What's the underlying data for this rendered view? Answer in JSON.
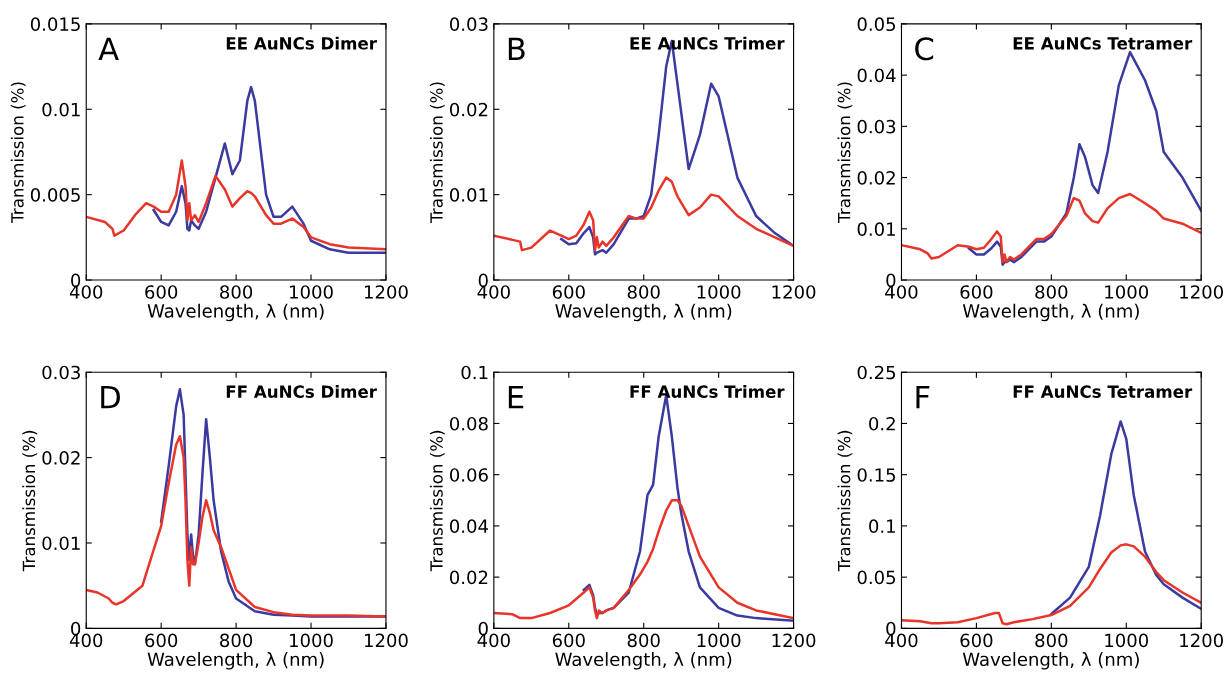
{
  "chart_data": [
    {
      "type": "line",
      "title": "EE AuNCs Dimer",
      "annotations": [
        "A"
      ],
      "xlabel": "Wavelength, λ (nm)",
      "ylabel": "Transmission (%)",
      "xlim": [
        400,
        1200
      ],
      "xticks": [
        400,
        600,
        800,
        1000,
        1200
      ],
      "ylim": [
        0,
        0.015
      ],
      "yticks": [
        0,
        0.005,
        0.01,
        0.015
      ],
      "grid": false,
      "legend": false,
      "x": [
        400,
        450,
        470,
        475,
        500,
        530,
        560,
        580,
        600,
        620,
        640,
        655,
        665,
        670,
        675,
        680,
        690,
        700,
        720,
        745,
        770,
        790,
        810,
        830,
        840,
        850,
        880,
        900,
        920,
        950,
        980,
        1000,
        1050,
        1100,
        1200
      ],
      "series": [
        {
          "color": "#3a3aa0",
          "values": [
            null,
            null,
            null,
            null,
            null,
            null,
            null,
            0.0041,
            0.0034,
            0.0032,
            0.004,
            0.0055,
            0.0045,
            0.003,
            0.0029,
            0.0035,
            0.0032,
            0.003,
            0.004,
            0.006,
            0.008,
            0.0062,
            0.007,
            0.0105,
            0.0113,
            0.0105,
            0.005,
            0.0037,
            0.0037,
            0.0043,
            0.0033,
            0.0023,
            0.0018,
            0.0016,
            0.0016
          ]
        },
        {
          "color": "#e8352a",
          "values": [
            0.0037,
            0.0034,
            0.003,
            0.0026,
            0.0029,
            0.0038,
            0.0045,
            0.0043,
            0.004,
            0.004,
            0.005,
            0.007,
            0.0055,
            0.0035,
            0.0045,
            0.0035,
            0.0038,
            0.0034,
            0.0045,
            0.0061,
            0.0053,
            0.0043,
            0.0048,
            0.0052,
            0.0051,
            0.0049,
            0.0038,
            0.0033,
            0.0033,
            0.0036,
            0.0031,
            0.0025,
            0.0021,
            0.0019,
            0.0018
          ]
        }
      ]
    },
    {
      "type": "line",
      "title": "EE AuNCs Trimer",
      "annotations": [
        "B"
      ],
      "xlabel": "Wavelength, λ (nm)",
      "ylabel": "Transmission (%)",
      "xlim": [
        400,
        1200
      ],
      "xticks": [
        400,
        600,
        800,
        1000,
        1200
      ],
      "ylim": [
        0,
        0.03
      ],
      "yticks": [
        0,
        0.01,
        0.02,
        0.03
      ],
      "grid": false,
      "legend": false,
      "x": [
        400,
        450,
        470,
        475,
        500,
        550,
        580,
        600,
        620,
        640,
        655,
        665,
        670,
        675,
        680,
        690,
        700,
        720,
        760,
        780,
        800,
        820,
        840,
        860,
        875,
        890,
        920,
        950,
        980,
        1000,
        1050,
        1100,
        1150,
        1200
      ],
      "series": [
        {
          "color": "#3a3aa0",
          "values": [
            null,
            null,
            null,
            null,
            null,
            null,
            0.0048,
            0.0042,
            0.0043,
            0.0055,
            0.0062,
            0.005,
            0.003,
            0.0032,
            0.0033,
            0.0035,
            0.0032,
            0.0042,
            0.0072,
            0.0072,
            0.0075,
            0.01,
            0.017,
            0.025,
            0.028,
            0.023,
            0.013,
            0.017,
            0.023,
            0.0215,
            0.012,
            0.0075,
            0.0055,
            0.004
          ]
        },
        {
          "color": "#e8352a",
          "values": [
            0.0052,
            0.0047,
            0.0045,
            0.0035,
            0.0038,
            0.0058,
            0.0052,
            0.0048,
            0.0052,
            0.0065,
            0.008,
            0.007,
            0.0035,
            0.005,
            0.0038,
            0.0045,
            0.004,
            0.005,
            0.0075,
            0.0072,
            0.0072,
            0.0085,
            0.0105,
            0.012,
            0.0115,
            0.0098,
            0.0076,
            0.0085,
            0.01,
            0.0098,
            0.0075,
            0.006,
            0.005,
            0.004
          ]
        }
      ]
    },
    {
      "type": "line",
      "title": "EE AuNCs Tetramer",
      "annotations": [
        "C"
      ],
      "xlabel": "Wavelength, λ (nm)",
      "ylabel": "Transmission (%)",
      "xlim": [
        400,
        1200
      ],
      "xticks": [
        400,
        600,
        800,
        1000,
        1200
      ],
      "ylim": [
        0,
        0.05
      ],
      "yticks": [
        0,
        0.01,
        0.02,
        0.03,
        0.04,
        0.05
      ],
      "grid": false,
      "legend": false,
      "x": [
        400,
        450,
        470,
        480,
        500,
        550,
        580,
        600,
        620,
        640,
        655,
        665,
        670,
        675,
        680,
        690,
        700,
        720,
        760,
        780,
        800,
        840,
        860,
        875,
        890,
        910,
        925,
        950,
        980,
        1010,
        1050,
        1080,
        1100,
        1150,
        1200
      ],
      "series": [
        {
          "color": "#3a3aa0",
          "values": [
            null,
            null,
            null,
            null,
            null,
            null,
            0.0062,
            0.005,
            0.005,
            0.0062,
            0.0075,
            0.0065,
            0.003,
            0.0035,
            0.0035,
            0.004,
            0.0035,
            0.0045,
            0.0075,
            0.0075,
            0.0085,
            0.013,
            0.02,
            0.0265,
            0.024,
            0.0185,
            0.017,
            0.025,
            0.038,
            0.0445,
            0.039,
            0.033,
            0.025,
            0.02,
            0.0135
          ]
        },
        {
          "color": "#e8352a",
          "values": [
            0.0068,
            0.006,
            0.0052,
            0.0042,
            0.0045,
            0.0068,
            0.0065,
            0.006,
            0.0063,
            0.008,
            0.0095,
            0.0085,
            0.0035,
            0.005,
            0.0035,
            0.0045,
            0.004,
            0.005,
            0.008,
            0.008,
            0.009,
            0.0125,
            0.016,
            0.0155,
            0.013,
            0.0115,
            0.0112,
            0.014,
            0.016,
            0.0168,
            0.015,
            0.0135,
            0.012,
            0.011,
            0.0092
          ]
        }
      ]
    },
    {
      "type": "line",
      "title": "FF AuNCs Dimer",
      "annotations": [
        "D"
      ],
      "xlabel": "Wavelength, λ (nm)",
      "ylabel": "Transmission (%)",
      "xlim": [
        400,
        1200
      ],
      "xticks": [
        400,
        600,
        800,
        1000,
        1200
      ],
      "ylim": [
        0,
        0.03
      ],
      "yticks": [
        0,
        0.01,
        0.02,
        0.03
      ],
      "grid": false,
      "legend": false,
      "x": [
        400,
        430,
        460,
        470,
        480,
        500,
        550,
        600,
        620,
        640,
        650,
        660,
        665,
        670,
        675,
        680,
        685,
        690,
        700,
        710,
        720,
        730,
        740,
        760,
        780,
        800,
        850,
        900,
        950,
        1000,
        1100,
        1200
      ],
      "series": [
        {
          "color": "#3a3aa0",
          "values": [
            null,
            null,
            null,
            null,
            null,
            null,
            null,
            0.0125,
            0.019,
            0.026,
            0.028,
            0.025,
            0.018,
            0.011,
            0.008,
            0.011,
            0.0085,
            0.0075,
            0.011,
            0.018,
            0.0245,
            0.02,
            0.015,
            0.009,
            0.0055,
            0.0035,
            0.002,
            0.0016,
            0.0015,
            0.0014,
            0.0014,
            0.0014
          ]
        },
        {
          "color": "#e8352a",
          "values": [
            0.0045,
            0.0042,
            0.0035,
            0.003,
            0.0028,
            0.0032,
            0.005,
            0.012,
            0.017,
            0.0215,
            0.0225,
            0.02,
            0.015,
            0.008,
            0.005,
            0.0095,
            0.0075,
            0.0075,
            0.01,
            0.013,
            0.015,
            0.0135,
            0.0115,
            0.0095,
            0.007,
            0.0045,
            0.0025,
            0.0019,
            0.0016,
            0.0015,
            0.0015,
            0.0014
          ]
        }
      ]
    },
    {
      "type": "line",
      "title": "FF AuNCs Trimer",
      "annotations": [
        "E"
      ],
      "xlabel": "Wavelength, λ (nm)",
      "ylabel": "Transmission (%)",
      "xlim": [
        400,
        1200
      ],
      "xticks": [
        400,
        600,
        800,
        1000,
        1200
      ],
      "ylim": [
        0,
        0.1
      ],
      "yticks": [
        0,
        0.02,
        0.04,
        0.06,
        0.08,
        0.1
      ],
      "grid": false,
      "legend": false,
      "x": [
        400,
        450,
        470,
        500,
        550,
        600,
        640,
        655,
        665,
        670,
        675,
        680,
        690,
        700,
        720,
        760,
        790,
        810,
        825,
        840,
        860,
        875,
        890,
        900,
        920,
        950,
        1000,
        1050,
        1100,
        1200
      ],
      "series": [
        {
          "color": "#3a3aa0",
          "values": [
            null,
            null,
            null,
            null,
            null,
            null,
            0.015,
            0.017,
            0.013,
            0.008,
            0.005,
            0.006,
            0.006,
            0.007,
            0.008,
            0.014,
            0.03,
            0.052,
            0.056,
            0.075,
            0.091,
            0.075,
            0.055,
            0.045,
            0.03,
            0.016,
            0.008,
            0.005,
            0.004,
            0.003
          ]
        },
        {
          "color": "#e8352a",
          "values": [
            0.006,
            0.0055,
            0.004,
            0.004,
            0.006,
            0.009,
            0.014,
            0.016,
            0.012,
            0.007,
            0.004,
            0.007,
            0.006,
            0.007,
            0.008,
            0.015,
            0.021,
            0.026,
            0.031,
            0.038,
            0.046,
            0.05,
            0.05,
            0.048,
            0.04,
            0.028,
            0.016,
            0.01,
            0.007,
            0.004
          ]
        }
      ]
    },
    {
      "type": "line",
      "title": "FF AuNCs Tetramer",
      "annotations": [
        "F"
      ],
      "xlabel": "Wavelength, λ (nm)",
      "ylabel": "Transmission (%)",
      "xlim": [
        400,
        1200
      ],
      "xticks": [
        400,
        600,
        800,
        1000,
        1200
      ],
      "ylim": [
        0,
        0.25
      ],
      "yticks": [
        0,
        0.05,
        0.1,
        0.15,
        0.2,
        0.25
      ],
      "grid": false,
      "legend": false,
      "x": [
        400,
        450,
        480,
        500,
        550,
        600,
        650,
        660,
        665,
        670,
        680,
        700,
        750,
        800,
        850,
        900,
        930,
        960,
        985,
        1000,
        1020,
        1050,
        1080,
        1100,
        1150,
        1200
      ],
      "series": [
        {
          "color": "#3a3aa0",
          "values": [
            null,
            null,
            null,
            null,
            null,
            null,
            null,
            null,
            null,
            null,
            null,
            null,
            null,
            0.014,
            0.03,
            0.06,
            0.11,
            0.17,
            0.202,
            0.185,
            0.13,
            0.075,
            0.052,
            0.043,
            0.03,
            0.019
          ]
        },
        {
          "color": "#e8352a",
          "values": [
            0.008,
            0.007,
            0.005,
            0.005,
            0.006,
            0.01,
            0.015,
            0.015,
            0.01,
            0.005,
            0.004,
            0.006,
            0.009,
            0.013,
            0.022,
            0.04,
            0.058,
            0.074,
            0.081,
            0.082,
            0.08,
            0.07,
            0.055,
            0.047,
            0.035,
            0.025
          ]
        }
      ]
    }
  ]
}
